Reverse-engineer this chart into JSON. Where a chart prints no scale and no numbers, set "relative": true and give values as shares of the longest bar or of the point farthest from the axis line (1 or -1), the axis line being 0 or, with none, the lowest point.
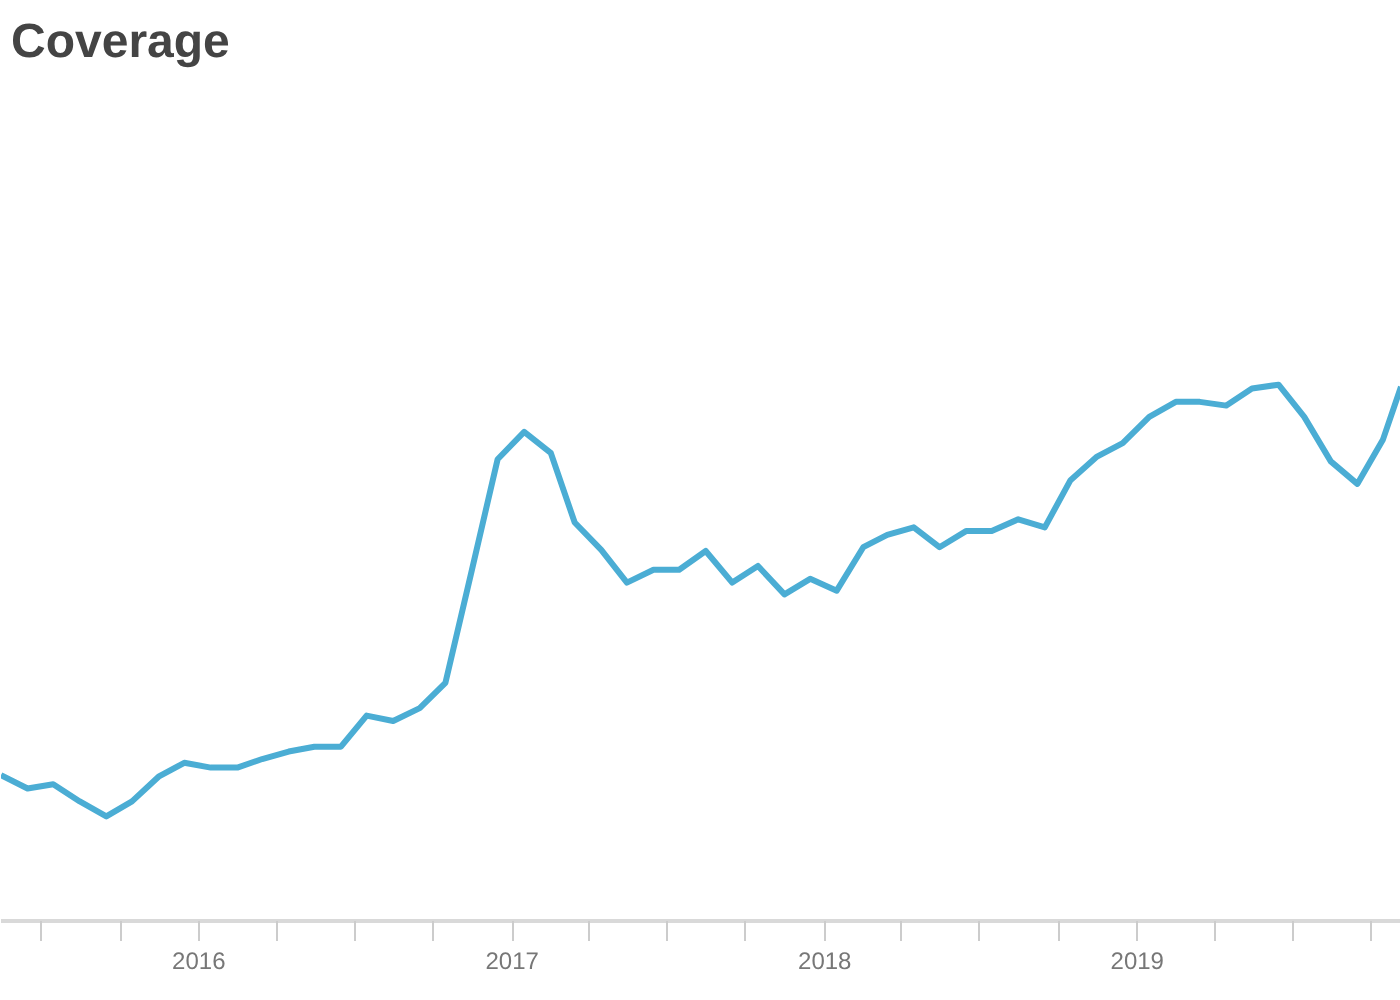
{
  "chart_data": {
    "type": "line",
    "title": "Coverage",
    "relative": true,
    "x": [
      "2015-05-15",
      "2015-06-15",
      "2015-07-15",
      "2015-08-15",
      "2015-09-15",
      "2015-10-15",
      "2015-11-15",
      "2015-12-15",
      "2016-01-15",
      "2016-02-15",
      "2016-03-15",
      "2016-04-15",
      "2016-05-15",
      "2016-06-15",
      "2016-07-15",
      "2016-08-15",
      "2016-09-15",
      "2016-10-15",
      "2016-11-15",
      "2016-12-15",
      "2017-01-15",
      "2017-02-15",
      "2017-03-15",
      "2017-04-15",
      "2017-05-15",
      "2017-06-15",
      "2017-07-15",
      "2017-08-15",
      "2017-09-15",
      "2017-10-15",
      "2017-11-15",
      "2017-12-15",
      "2018-01-15",
      "2018-02-15",
      "2018-03-15",
      "2018-04-15",
      "2018-05-15",
      "2018-06-15",
      "2018-07-15",
      "2018-08-15",
      "2018-09-15",
      "2018-10-15",
      "2018-11-15",
      "2018-12-15",
      "2019-01-15",
      "2019-02-15",
      "2019-03-15",
      "2019-04-15",
      "2019-05-15",
      "2019-06-15",
      "2019-07-15",
      "2019-08-15",
      "2019-09-15",
      "2019-10-15",
      "2019-11-05"
    ],
    "series": [
      {
        "color": "#4badd4",
        "values": [
          0.272,
          0.247,
          0.255,
          0.223,
          0.195,
          0.223,
          0.269,
          0.295,
          0.286,
          0.286,
          0.302,
          0.316,
          0.325,
          0.325,
          0.383,
          0.373,
          0.397,
          0.444,
          0.655,
          0.861,
          0.912,
          0.873,
          0.743,
          0.692,
          0.631,
          0.655,
          0.655,
          0.69,
          0.631,
          0.662,
          0.609,
          0.638,
          0.616,
          0.697,
          0.72,
          0.734,
          0.697,
          0.727,
          0.727,
          0.749,
          0.734,
          0.822,
          0.866,
          0.891,
          0.94,
          0.968,
          0.968,
          0.961,
          0.993,
          1.0,
          0.94,
          0.857,
          0.815,
          0.898,
          0.996
        ]
      }
    ],
    "xlim": [
      "2015-05-15",
      "2019-11-05"
    ],
    "xticks": [
      {
        "value": "2015-07-01",
        "label": null
      },
      {
        "value": "2015-10-01",
        "label": null
      },
      {
        "value": "2016-01-01",
        "label": "2016"
      },
      {
        "value": "2016-04-01",
        "label": null
      },
      {
        "value": "2016-07-01",
        "label": null
      },
      {
        "value": "2016-10-01",
        "label": null
      },
      {
        "value": "2017-01-01",
        "label": "2017"
      },
      {
        "value": "2017-04-01",
        "label": null
      },
      {
        "value": "2017-07-01",
        "label": null
      },
      {
        "value": "2017-10-01",
        "label": null
      },
      {
        "value": "2018-01-01",
        "label": "2018"
      },
      {
        "value": "2018-04-01",
        "label": null
      },
      {
        "value": "2018-07-01",
        "label": null
      },
      {
        "value": "2018-10-01",
        "label": null
      },
      {
        "value": "2019-01-01",
        "label": "2019"
      },
      {
        "value": "2019-04-01",
        "label": null
      },
      {
        "value": "2019-07-01",
        "label": null
      },
      {
        "value": "2019-10-01",
        "label": null
      }
    ],
    "grid": false,
    "marker": "none",
    "line_style": "solid"
  }
}
